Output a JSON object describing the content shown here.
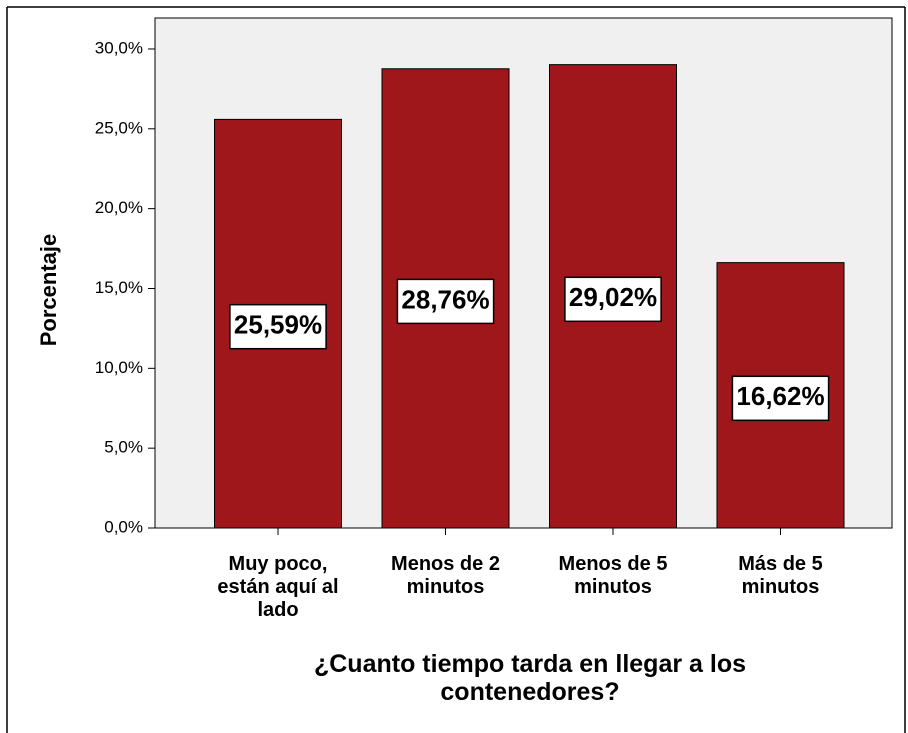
{
  "chart_data": {
    "type": "bar",
    "x_label": "¿Cuanto tiempo tarda en llegar a los contenedores?",
    "y_label": "Porcentaje",
    "categories": [
      "Muy poco, están aquí al lado",
      "Menos de 2 minutos",
      "Menos de 5 minutos",
      "Más de 5 minutos"
    ],
    "values": [
      25.59,
      28.76,
      29.02,
      16.62
    ],
    "value_labels": [
      "25,59%",
      "28,76%",
      "29,02%",
      "16,62%"
    ],
    "color": "#a0171b",
    "ylim": [
      0,
      31.94
    ],
    "yticks": [
      {
        "value": 0,
        "label": "0,0%"
      },
      {
        "value": 5,
        "label": "5,0%"
      },
      {
        "value": 10,
        "label": "10,0%"
      },
      {
        "value": 15,
        "label": "15,0%"
      },
      {
        "value": 20,
        "label": "20,0%"
      },
      {
        "value": 25,
        "label": "25,0%"
      },
      {
        "value": 30,
        "label": "30,0%"
      }
    ]
  }
}
